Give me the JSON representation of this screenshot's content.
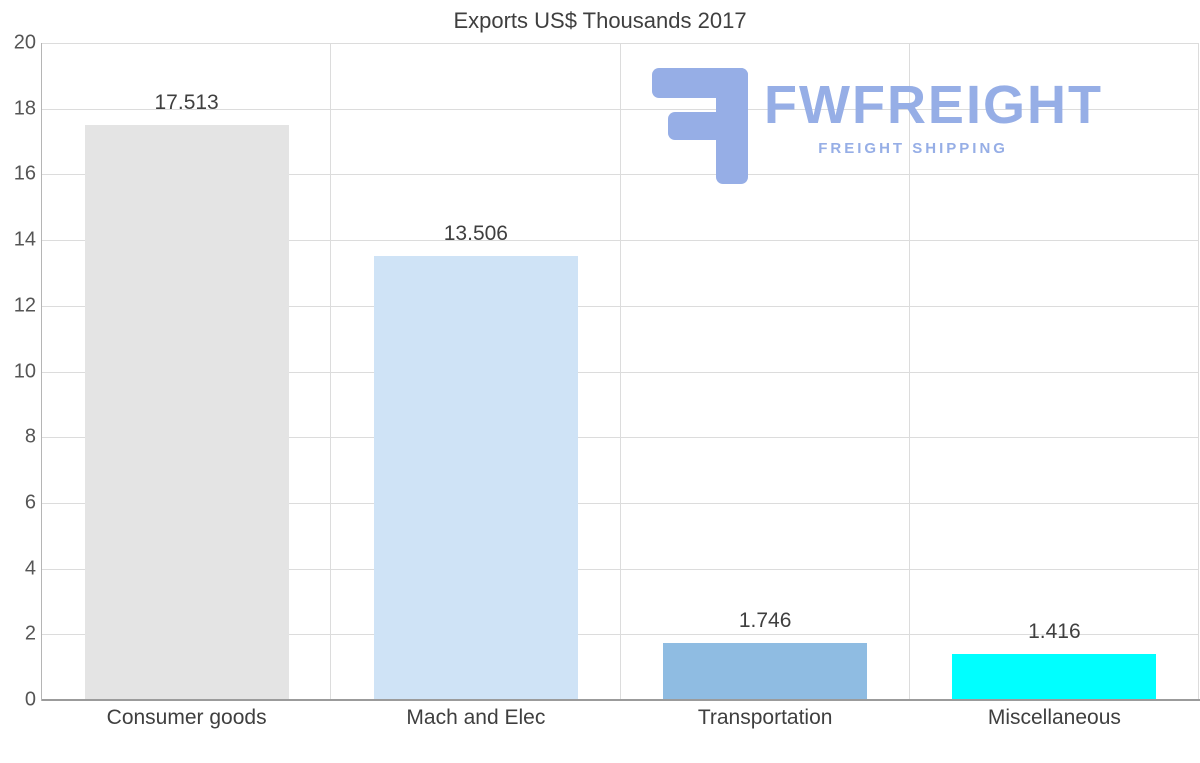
{
  "chart_data": {
    "type": "bar",
    "title": "Exports US$ Thousands 2017",
    "categories": [
      "Consumer goods",
      "Mach and Elec",
      "Transportation",
      "Miscellaneous"
    ],
    "values": [
      17.513,
      13.506,
      1.746,
      1.416
    ],
    "value_labels": [
      "17.513",
      "13.506",
      "1.746",
      "1.416"
    ],
    "bar_colors": [
      "#e4e4e4",
      "#cfe3f6",
      "#8fbce2",
      "#00ffff"
    ],
    "xlabel": "",
    "ylabel": "",
    "ylim": [
      0,
      20
    ],
    "ytick_step": 2,
    "grid": true,
    "legend": false
  },
  "watermark": {
    "brand": "FWFREIGHT",
    "tagline": "FREIGHT SHIPPING",
    "color": "#96aee6"
  }
}
